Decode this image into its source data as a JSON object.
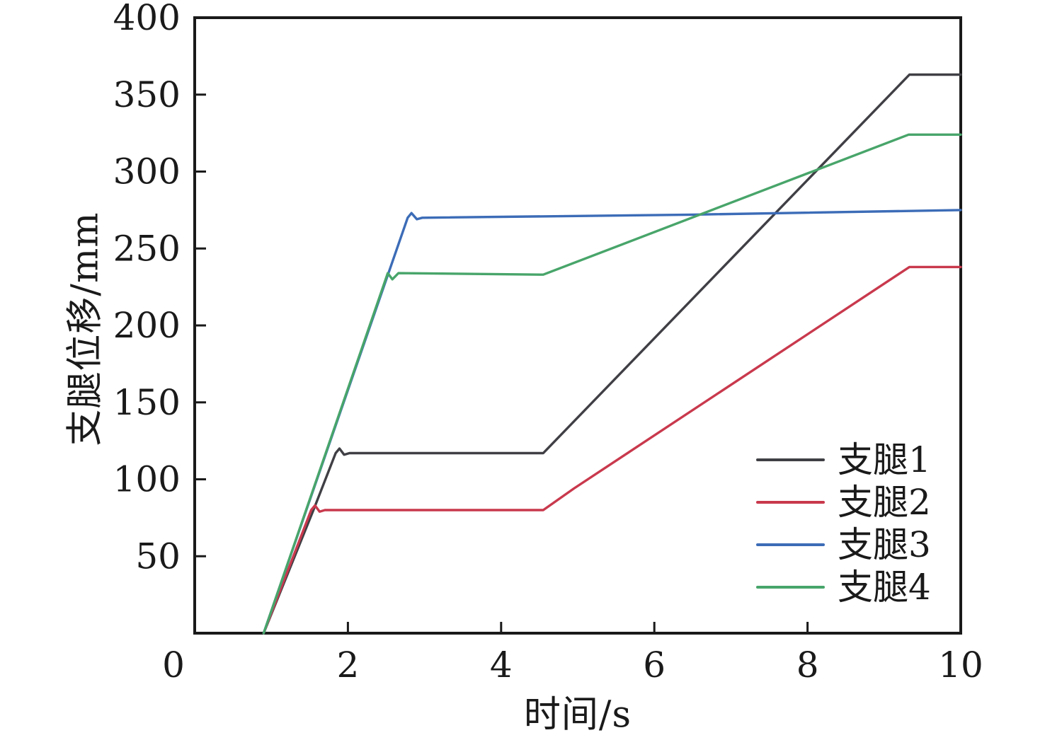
{
  "chart_data": {
    "type": "line",
    "title": "",
    "xlabel": "时间/s",
    "ylabel": "支腿位移/mm",
    "xlim": [
      0,
      10
    ],
    "ylim": [
      0,
      400
    ],
    "xticks": [
      0,
      2,
      4,
      6,
      8,
      10
    ],
    "yticks": [
      50,
      100,
      150,
      200,
      250,
      300,
      350,
      400
    ],
    "grid": false,
    "legend_position": "inside-bottom-right",
    "frame": true,
    "axis_color": "#1a1a1a",
    "series": [
      {
        "name": "支腿1",
        "color": "#3f3f45",
        "points": [
          [
            0.9,
            0
          ],
          [
            1.55,
            80
          ],
          [
            1.84,
            117
          ],
          [
            1.89,
            120
          ],
          [
            1.95,
            116
          ],
          [
            2.02,
            117
          ],
          [
            4.55,
            117
          ],
          [
            9.33,
            363
          ],
          [
            10,
            363
          ]
        ]
      },
      {
        "name": "支腿2",
        "color": "#c9394d",
        "points": [
          [
            0.9,
            0
          ],
          [
            1.52,
            80
          ],
          [
            1.57,
            83
          ],
          [
            1.63,
            79
          ],
          [
            1.7,
            80
          ],
          [
            4.55,
            80
          ],
          [
            4.95,
            94
          ],
          [
            9.33,
            238
          ],
          [
            10,
            238
          ]
        ]
      },
      {
        "name": "支腿3",
        "color": "#3c6cb7",
        "points": [
          [
            0.9,
            0
          ],
          [
            2.78,
            270
          ],
          [
            2.83,
            273
          ],
          [
            2.9,
            269
          ],
          [
            2.97,
            270
          ],
          [
            6.5,
            272
          ],
          [
            10,
            275
          ]
        ]
      },
      {
        "name": "支腿4",
        "color": "#48a56a",
        "points": [
          [
            0.9,
            0
          ],
          [
            2.52,
            234
          ],
          [
            2.58,
            230
          ],
          [
            2.66,
            234
          ],
          [
            4.55,
            233
          ],
          [
            9.32,
            324
          ],
          [
            10,
            324
          ]
        ]
      }
    ]
  }
}
